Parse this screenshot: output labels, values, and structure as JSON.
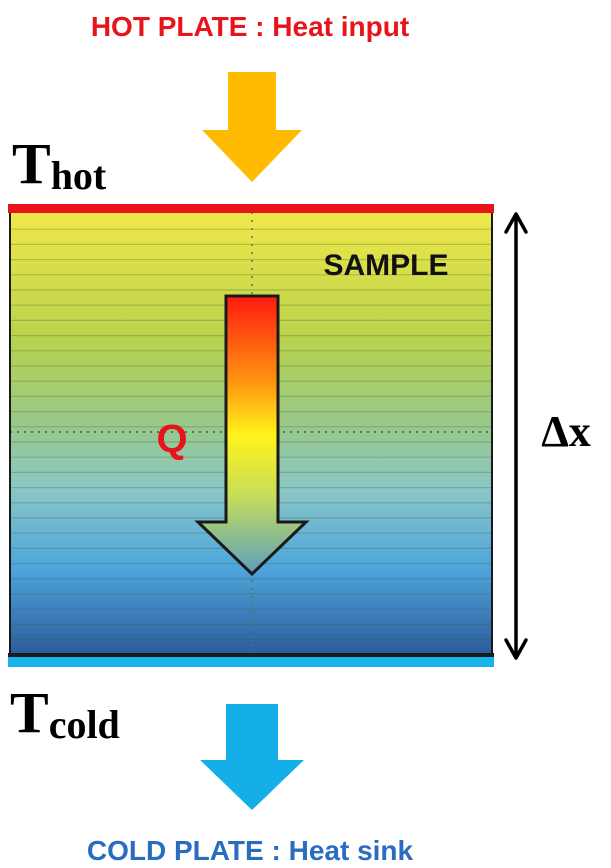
{
  "hot_plate_label": "HOT PLATE : Heat input",
  "cold_plate_label": "COLD PLATE : Heat sink",
  "t_hot": {
    "symbol": "T",
    "subscript": "hot"
  },
  "t_cold": {
    "symbol": "T",
    "subscript": "cold"
  },
  "sample_label": "SAMPLE",
  "heat_flow_label": "Q",
  "thickness_label": "Δx",
  "colors": {
    "hot_text": "#e8141b",
    "cold_text": "#2a6cc0",
    "hot_plate": "#e8141b",
    "cold_plate": "#17b3ea",
    "input_arrow": "#ffbb00",
    "sink_arrow": "#14aee8",
    "sample_top": "#efe53a",
    "sample_mid": "#9ccaa1",
    "sample_bottom": "#2f5c9a"
  }
}
